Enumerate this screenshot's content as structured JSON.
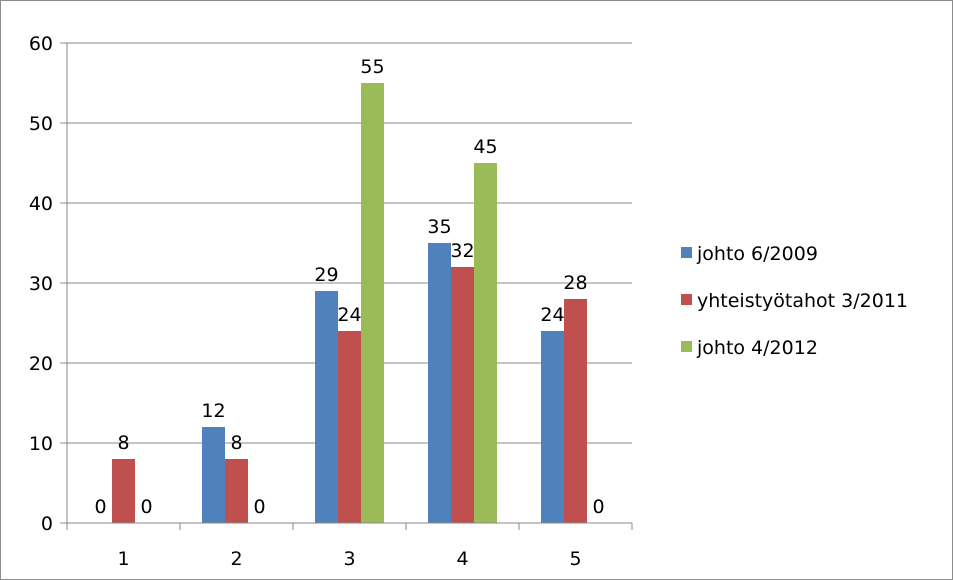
{
  "chart_data": {
    "type": "bar",
    "categories": [
      "1",
      "2",
      "3",
      "4",
      "5"
    ],
    "series": [
      {
        "name": "johto 6/2009",
        "color": "#4f81bd",
        "values": [
          0,
          12,
          29,
          35,
          24
        ]
      },
      {
        "name": "yhteistyötahot 3/2011",
        "color": "#c0504d",
        "values": [
          8,
          8,
          24,
          32,
          28
        ]
      },
      {
        "name": "johto 4/2012",
        "color": "#9bbb59",
        "values": [
          0,
          0,
          55,
          45,
          0
        ]
      }
    ],
    "ylim": [
      0,
      60
    ],
    "yticks": [
      "0",
      "10",
      "20",
      "30",
      "40",
      "50",
      "60"
    ],
    "grid": true,
    "legend_position": "right",
    "data_labels": true
  }
}
